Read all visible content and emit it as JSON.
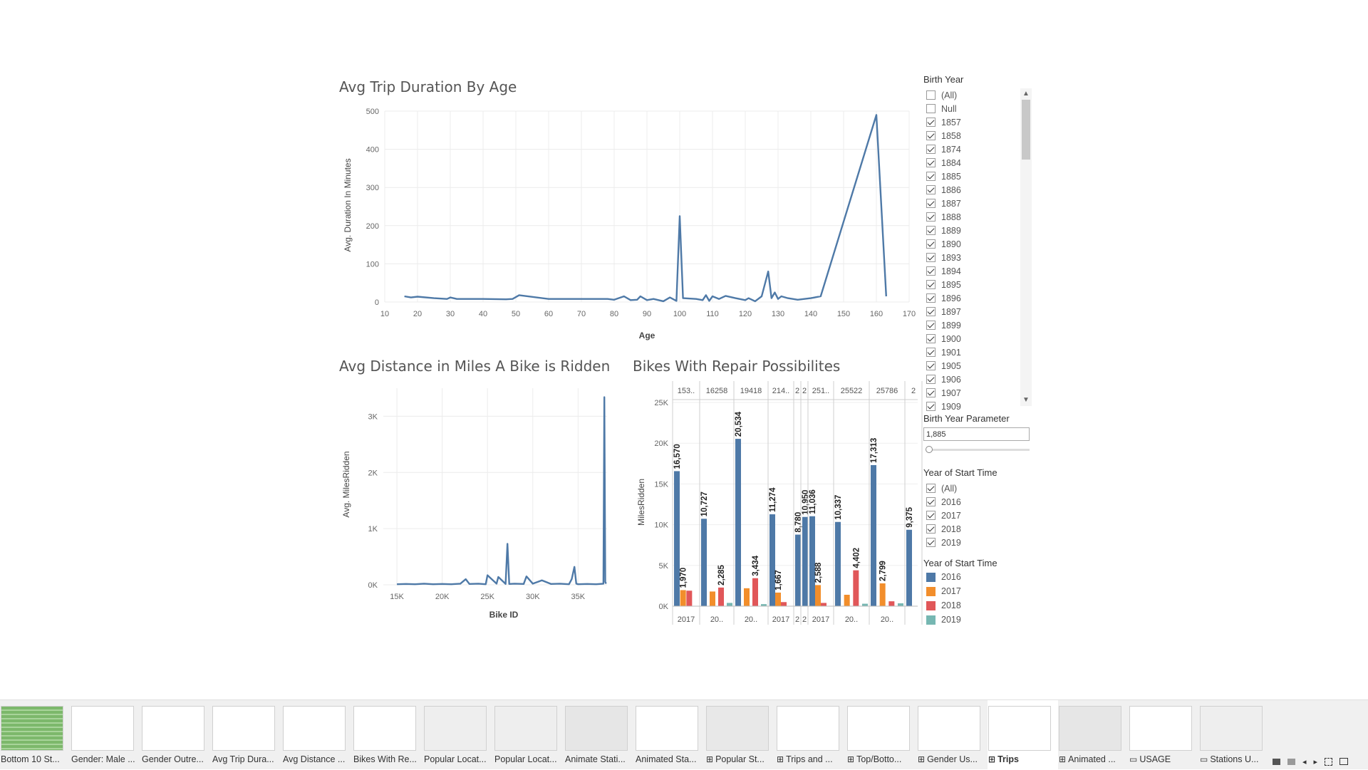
{
  "chart1": {
    "title": "Avg Trip Duration By Age",
    "ylabel": "Avg. Duration In Minutes",
    "xlabel": "Age",
    "yticks": [
      "500",
      "400",
      "300",
      "200",
      "100",
      "0"
    ],
    "xticks": [
      "10",
      "20",
      "30",
      "40",
      "50",
      "60",
      "70",
      "80",
      "90",
      "100",
      "110",
      "120",
      "130",
      "140",
      "150",
      "160",
      "170"
    ]
  },
  "chart2": {
    "title": "Avg Distance in Miles A Bike is Ridden",
    "ylabel": "Avg. MilesRidden",
    "xlabel": "Bike ID",
    "yticks": [
      "3K",
      "2K",
      "1K",
      "0K"
    ],
    "xticks": [
      "15K",
      "20K",
      "25K",
      "30K",
      "35K"
    ]
  },
  "chart3": {
    "title": "Bikes With Repair Possibilites",
    "ylabel": "MilesRidden",
    "yticks": [
      "25K",
      "20K",
      "15K",
      "10K",
      "5K",
      "0K"
    ],
    "panes": [
      {
        "header": "153..",
        "footer": "2017"
      },
      {
        "header": "16258",
        "footer": "20.."
      },
      {
        "header": "19418",
        "footer": "20.."
      },
      {
        "header": "214..",
        "footer": "2017"
      },
      {
        "header": "2",
        "footer": "2"
      },
      {
        "header": "2",
        "footer": "2"
      },
      {
        "header": "251..",
        "footer": "2017"
      },
      {
        "header": "25522",
        "footer": "20.."
      },
      {
        "header": "25786",
        "footer": "20.."
      },
      {
        "header": "2",
        "footer": ""
      }
    ]
  },
  "chart_data": [
    {
      "type": "line",
      "title": "Avg Trip Duration By Age",
      "xlabel": "Age",
      "ylabel": "Avg. Duration In Minutes",
      "xlim": [
        10,
        170
      ],
      "ylim": [
        0,
        500
      ],
      "grid": true,
      "x": [
        16,
        18,
        20,
        25,
        29,
        30,
        32,
        40,
        47,
        49,
        51,
        60,
        70,
        78,
        80,
        83,
        85,
        87,
        88,
        90,
        92,
        95,
        97,
        99,
        100,
        101,
        105,
        107,
        108,
        109,
        110,
        112,
        114,
        117,
        120,
        121,
        123,
        125,
        127,
        128,
        129,
        130,
        131,
        133,
        136,
        140,
        143,
        160,
        163
      ],
      "y": [
        15,
        12,
        14,
        10,
        8,
        12,
        8,
        8,
        7,
        8,
        18,
        8,
        8,
        8,
        6,
        15,
        5,
        6,
        15,
        5,
        8,
        2,
        12,
        3,
        225,
        10,
        8,
        5,
        18,
        3,
        15,
        8,
        16,
        10,
        5,
        10,
        2,
        15,
        80,
        10,
        25,
        8,
        15,
        10,
        6,
        10,
        15,
        490,
        15
      ]
    },
    {
      "type": "line",
      "title": "Avg Distance in Miles A Bike is Ridden",
      "xlabel": "Bike ID",
      "ylabel": "Avg. MilesRidden",
      "xlim": [
        13500,
        38200
      ],
      "ylim": [
        0,
        3500
      ],
      "grid": true,
      "x": [
        15000,
        16000,
        17000,
        18000,
        19000,
        20000,
        21000,
        22000,
        22600,
        23000,
        24000,
        24800,
        25000,
        26000,
        26200,
        27000,
        27200,
        27400,
        28000,
        29000,
        29300,
        30000,
        30500,
        31000,
        32000,
        33000,
        34000,
        34300,
        34600,
        34800,
        35000,
        36000,
        37000,
        37800,
        37900,
        38000,
        38100
      ],
      "y": [
        10,
        15,
        10,
        20,
        10,
        15,
        10,
        20,
        100,
        15,
        20,
        10,
        170,
        20,
        140,
        15,
        730,
        15,
        20,
        15,
        150,
        20,
        50,
        80,
        15,
        20,
        10,
        100,
        320,
        20,
        10,
        15,
        10,
        20,
        3340,
        50,
        20
      ]
    },
    {
      "type": "bar",
      "title": "Bikes With Repair Possibilites",
      "ylabel": "MilesRidden",
      "ylim": [
        0,
        25000
      ],
      "legend": "right",
      "colors": {
        "2016": "#4e79a7",
        "2017": "#f28e2b",
        "2018": "#e15759",
        "2019": "#76b7b2"
      },
      "groups": [
        {
          "values": [
            16570,
            1970,
            1900,
            0
          ]
        },
        {
          "values": [
            10727,
            1800,
            2285,
            400
          ]
        },
        {
          "values": [
            20534,
            2200,
            3434,
            250
          ]
        },
        {
          "values": [
            11274,
            1667,
            500,
            0
          ]
        },
        {
          "values": [
            8780
          ]
        },
        {
          "values": [
            10950
          ]
        },
        {
          "values": [
            11036,
            2588,
            400,
            0
          ]
        },
        {
          "values": [
            10337,
            1400,
            4402,
            300
          ]
        },
        {
          "values": [
            17313,
            2799,
            600,
            350
          ]
        },
        {
          "values": [
            9375
          ]
        }
      ],
      "labels": [
        [
          "16,570",
          "1,970",
          "",
          ""
        ],
        [
          "10,727",
          "",
          "2,285",
          ""
        ],
        [
          "20,534",
          "",
          "3,434",
          ""
        ],
        [
          "11,274",
          "1,667",
          "",
          ""
        ],
        [
          "8,780"
        ],
        [
          "10,950"
        ],
        [
          "11,036",
          "2,588",
          "",
          ""
        ],
        [
          "10,337",
          "",
          "4,402",
          ""
        ],
        [
          "17,313",
          "2,799",
          "",
          ""
        ],
        [
          "9,375"
        ]
      ]
    }
  ],
  "filters": {
    "birth_year": {
      "title": "Birth Year",
      "items": [
        {
          "label": "(All)",
          "checked": false
        },
        {
          "label": "Null",
          "checked": false
        },
        {
          "label": "1857",
          "checked": true
        },
        {
          "label": "1858",
          "checked": true
        },
        {
          "label": "1874",
          "checked": true
        },
        {
          "label": "1884",
          "checked": true
        },
        {
          "label": "1885",
          "checked": true
        },
        {
          "label": "1886",
          "checked": true
        },
        {
          "label": "1887",
          "checked": true
        },
        {
          "label": "1888",
          "checked": true
        },
        {
          "label": "1889",
          "checked": true
        },
        {
          "label": "1890",
          "checked": true
        },
        {
          "label": "1893",
          "checked": true
        },
        {
          "label": "1894",
          "checked": true
        },
        {
          "label": "1895",
          "checked": true
        },
        {
          "label": "1896",
          "checked": true
        },
        {
          "label": "1897",
          "checked": true
        },
        {
          "label": "1899",
          "checked": true
        },
        {
          "label": "1900",
          "checked": true
        },
        {
          "label": "1901",
          "checked": true
        },
        {
          "label": "1905",
          "checked": true
        },
        {
          "label": "1906",
          "checked": true
        },
        {
          "label": "1907",
          "checked": true
        },
        {
          "label": "1909",
          "checked": true
        }
      ]
    },
    "parameter": {
      "title": "Birth Year Parameter",
      "value": "1,885"
    },
    "year_start": {
      "title": "Year of Start Time",
      "items": [
        {
          "label": "(All)",
          "checked": true
        },
        {
          "label": "2016",
          "checked": true
        },
        {
          "label": "2017",
          "checked": true
        },
        {
          "label": "2018",
          "checked": true
        },
        {
          "label": "2019",
          "checked": true
        }
      ]
    },
    "year_legend": {
      "title": "Year of Start Time",
      "items": [
        {
          "label": "2016",
          "color": "#4e79a7"
        },
        {
          "label": "2017",
          "color": "#f28e2b"
        },
        {
          "label": "2018",
          "color": "#e15759"
        },
        {
          "label": "2019",
          "color": "#76b7b2"
        }
      ]
    }
  },
  "tabs": [
    {
      "label": "Bottom 10 St...",
      "icon": ""
    },
    {
      "label": "Gender: Male ...",
      "icon": ""
    },
    {
      "label": "Gender Outre...",
      "icon": ""
    },
    {
      "label": "Avg Trip Dura...",
      "icon": ""
    },
    {
      "label": "Avg Distance ...",
      "icon": ""
    },
    {
      "label": "Bikes With Re...",
      "icon": ""
    },
    {
      "label": "Popular Locat...",
      "icon": ""
    },
    {
      "label": "Popular Locat...",
      "icon": ""
    },
    {
      "label": "Animate Stati...",
      "icon": ""
    },
    {
      "label": "Animated Sta...",
      "icon": ""
    },
    {
      "label": "Popular St...",
      "icon": "dashboard-icon"
    },
    {
      "label": "Trips and ...",
      "icon": "dashboard-icon"
    },
    {
      "label": "Top/Botto...",
      "icon": "dashboard-icon"
    },
    {
      "label": "Gender Us...",
      "icon": "dashboard-icon"
    },
    {
      "label": "Trips",
      "icon": "dashboard-icon",
      "active": true
    },
    {
      "label": "Animated ...",
      "icon": "dashboard-icon"
    },
    {
      "label": "USAGE",
      "icon": "story-icon"
    },
    {
      "label": "Stations U...",
      "icon": "story-icon"
    }
  ]
}
